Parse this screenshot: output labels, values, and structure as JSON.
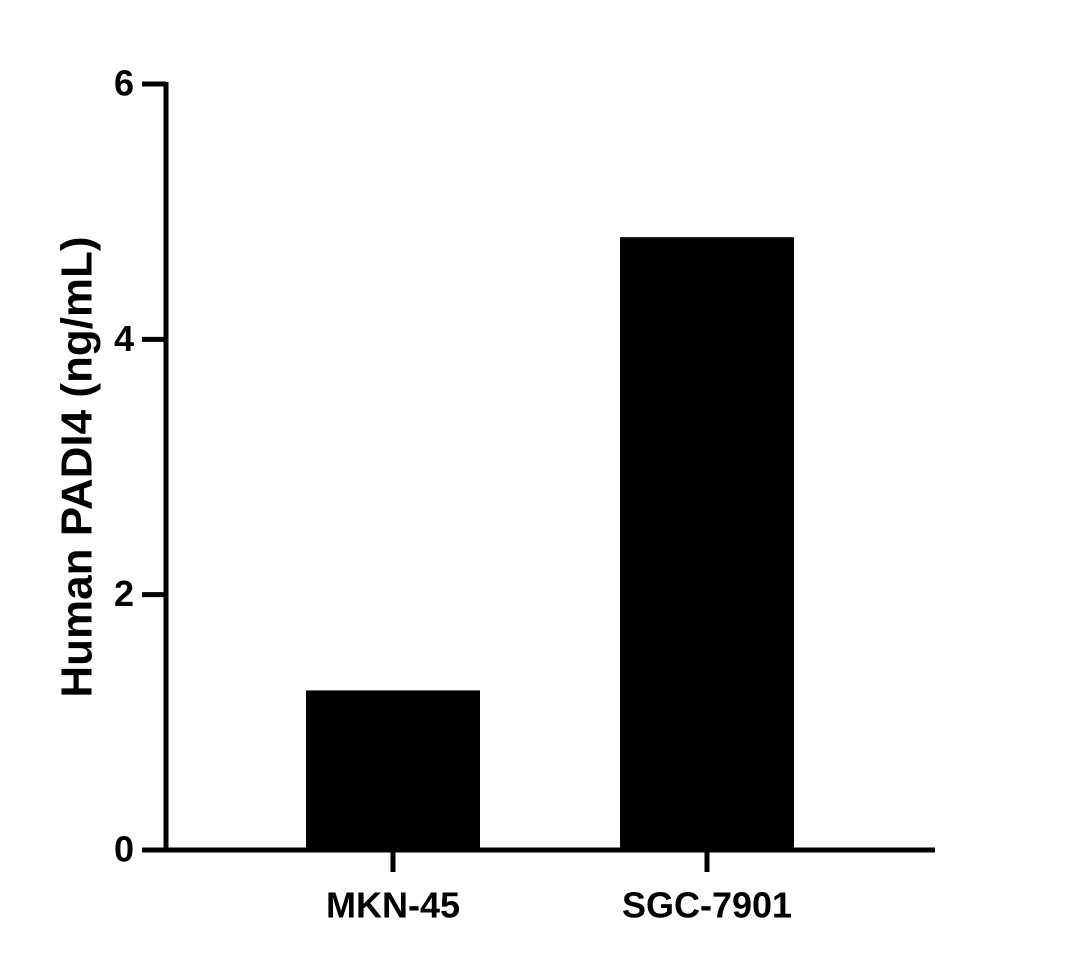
{
  "chart_data": {
    "type": "bar",
    "y_label": "Human PADI4 (ng/mL)",
    "categories": [
      "MKN-45",
      "SGC-7901"
    ],
    "values": [
      1.25,
      4.8
    ],
    "color": "#000000",
    "ylim": [
      0,
      6
    ],
    "yticks": [
      0,
      2,
      4,
      6
    ],
    "grid": false
  }
}
